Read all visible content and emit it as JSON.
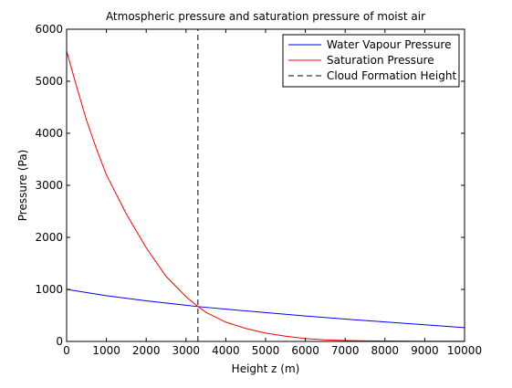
{
  "chart_data": {
    "type": "line",
    "title": "Atmospheric pressure and saturation pressure of moist air",
    "xlabel": "Height z (m)",
    "ylabel": "Pressure (Pa)",
    "xlim": [
      0,
      10000
    ],
    "ylim": [
      0,
      6000
    ],
    "xticks": [
      0,
      1000,
      2000,
      3000,
      4000,
      5000,
      6000,
      7000,
      8000,
      9000,
      10000
    ],
    "yticks": [
      0,
      1000,
      2000,
      3000,
      4000,
      5000,
      6000
    ],
    "grid": false,
    "legend_position": "top-right",
    "series": [
      {
        "name": "Water Vapour Pressure",
        "color": "#0000ff",
        "style": "solid",
        "x": [
          0,
          1000,
          2000,
          3000,
          3300,
          4000,
          5000,
          6000,
          7000,
          8000,
          9000,
          10000
        ],
        "y": [
          1000,
          880,
          780,
          695,
          670,
          620,
          555,
          490,
          430,
          375,
          320,
          265
        ]
      },
      {
        "name": "Saturation Pressure",
        "color": "#ff0000",
        "style": "solid",
        "x": [
          0,
          250,
          500,
          750,
          1000,
          1500,
          2000,
          2500,
          3000,
          3300,
          3500,
          4000,
          4500,
          5000,
          5500,
          6000,
          6500,
          7000,
          7500,
          8000,
          9000,
          10000
        ],
        "y": [
          5580,
          4900,
          4250,
          3700,
          3200,
          2450,
          1800,
          1250,
          860,
          670,
          560,
          370,
          250,
          160,
          100,
          55,
          30,
          18,
          10,
          8,
          5,
          5
        ]
      },
      {
        "name": "Cloud Formation Height",
        "color": "#000000",
        "style": "dashed",
        "x": [
          3300,
          3300
        ],
        "y": [
          0,
          6000
        ]
      }
    ]
  }
}
